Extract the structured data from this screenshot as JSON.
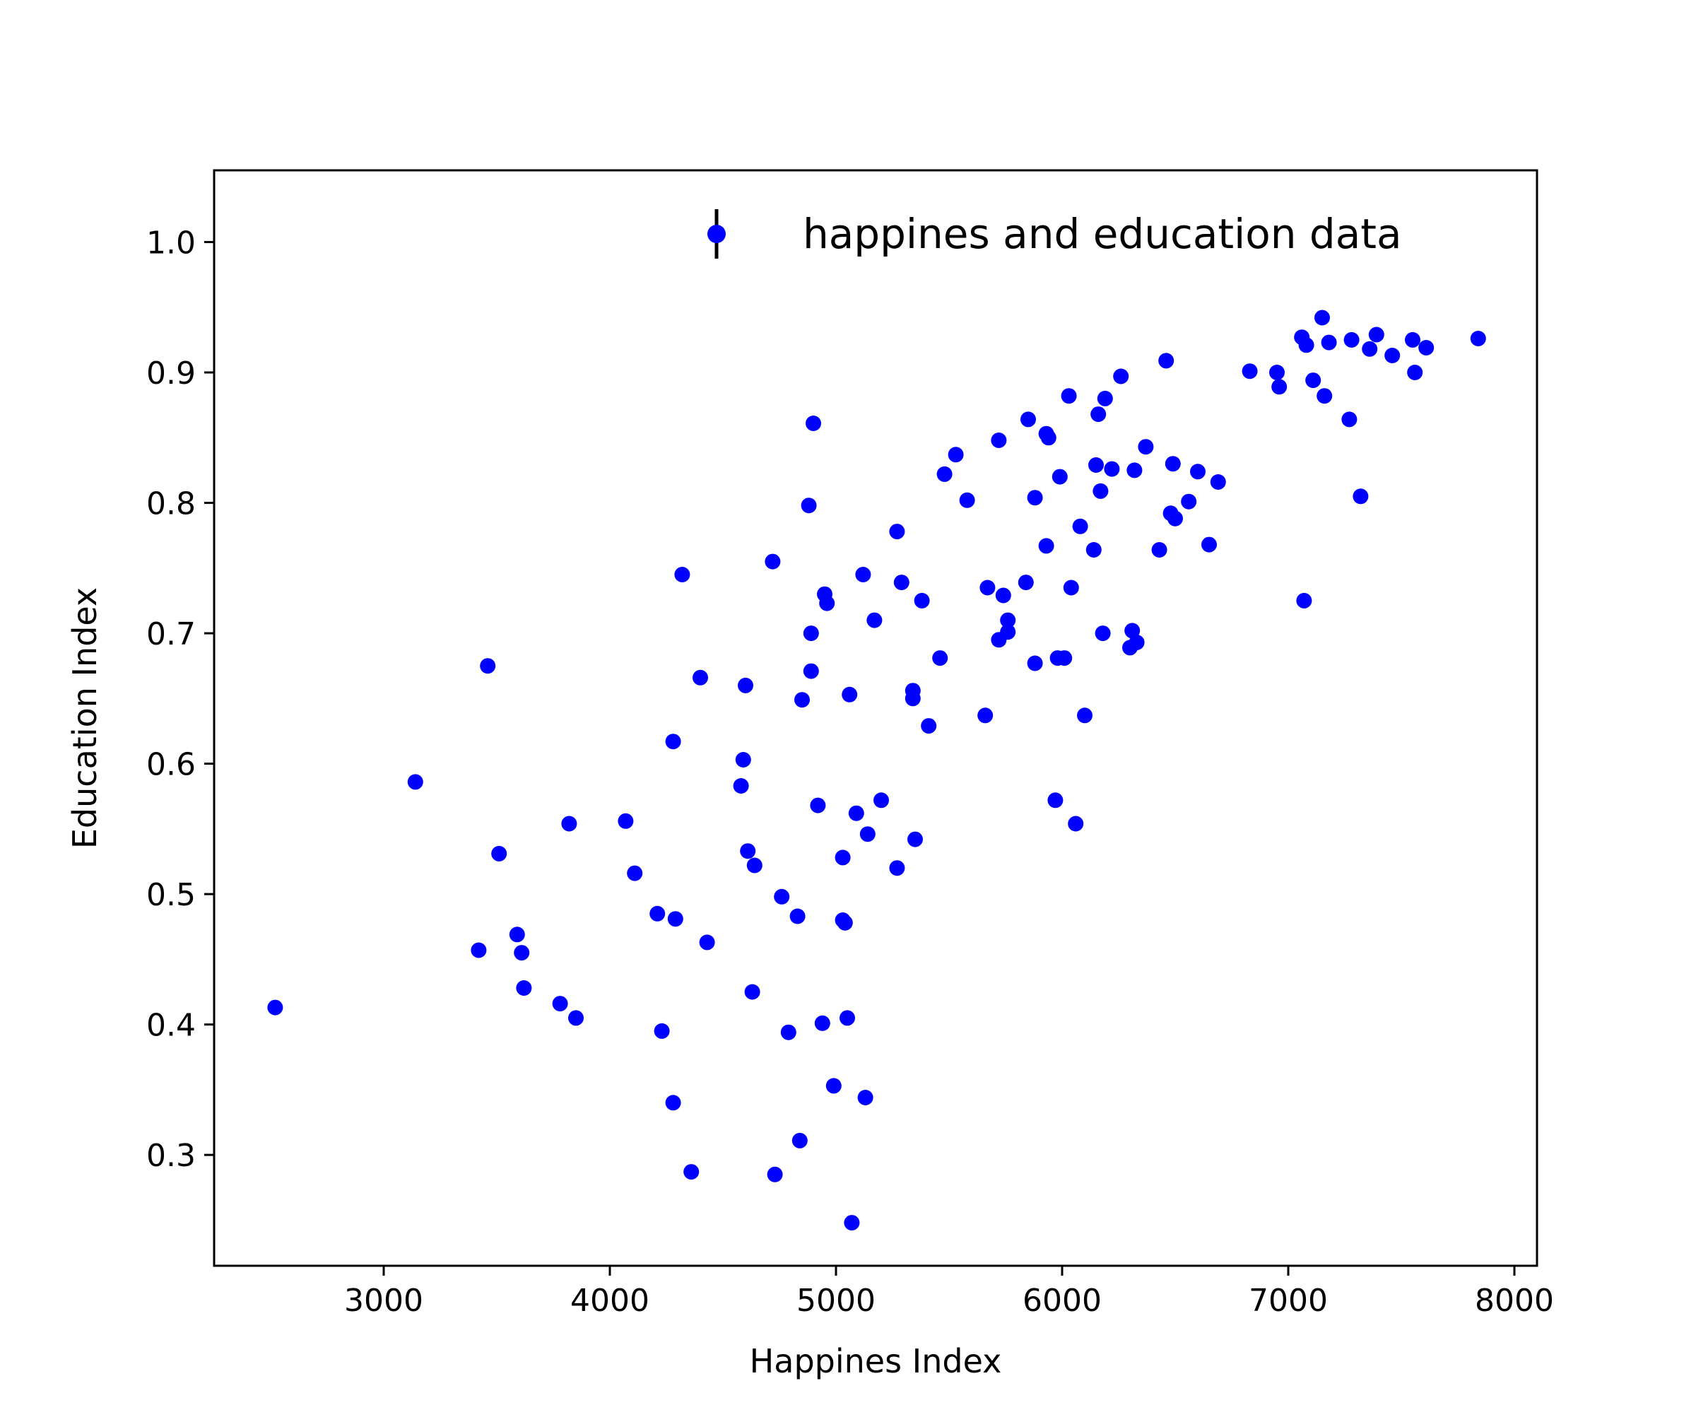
{
  "chart_data": {
    "type": "scatter",
    "title": "",
    "xlabel": "Happines Index",
    "ylabel": "Education Index",
    "xlim": [
      2250,
      8100
    ],
    "ylim": [
      0.215,
      1.055
    ],
    "xticks": [
      3000,
      4000,
      5000,
      6000,
      7000,
      8000
    ],
    "xtick_labels": [
      "3000",
      "4000",
      "5000",
      "6000",
      "7000",
      "8000"
    ],
    "yticks": [
      0.3,
      0.4,
      0.5,
      0.6,
      0.7,
      0.8,
      0.9,
      1.0
    ],
    "ytick_labels": [
      "0.3",
      "0.4",
      "0.5",
      "0.6",
      "0.7",
      "0.8",
      "0.9",
      "1.0"
    ],
    "grid": false,
    "legend_position": "top-right",
    "series": [
      {
        "name": "happines and education data",
        "color": "#0000ff",
        "marker": "circle",
        "errorbar_legend": true,
        "points": [
          [
            2520,
            0.413
          ],
          [
            3140,
            0.586
          ],
          [
            3420,
            0.457
          ],
          [
            3460,
            0.675
          ],
          [
            3510,
            0.531
          ],
          [
            3590,
            0.469
          ],
          [
            3610,
            0.455
          ],
          [
            3620,
            0.428
          ],
          [
            3780,
            0.416
          ],
          [
            3820,
            0.554
          ],
          [
            3850,
            0.405
          ],
          [
            4070,
            0.556
          ],
          [
            4110,
            0.516
          ],
          [
            4210,
            0.485
          ],
          [
            4230,
            0.395
          ],
          [
            4280,
            0.617
          ],
          [
            4280,
            0.34
          ],
          [
            4290,
            0.481
          ],
          [
            4320,
            0.745
          ],
          [
            4360,
            0.287
          ],
          [
            4400,
            0.666
          ],
          [
            4430,
            0.463
          ],
          [
            4580,
            0.583
          ],
          [
            4590,
            0.603
          ],
          [
            4600,
            0.66
          ],
          [
            4610,
            0.533
          ],
          [
            4630,
            0.425
          ],
          [
            4640,
            0.522
          ],
          [
            4720,
            0.755
          ],
          [
            4730,
            0.285
          ],
          [
            4760,
            0.498
          ],
          [
            4790,
            0.394
          ],
          [
            4830,
            0.483
          ],
          [
            4840,
            0.311
          ],
          [
            4850,
            0.649
          ],
          [
            4880,
            0.798
          ],
          [
            4890,
            0.671
          ],
          [
            4890,
            0.7
          ],
          [
            4900,
            0.861
          ],
          [
            4920,
            0.568
          ],
          [
            4940,
            0.401
          ],
          [
            4950,
            0.73
          ],
          [
            4960,
            0.723
          ],
          [
            4990,
            0.353
          ],
          [
            5030,
            0.528
          ],
          [
            5030,
            0.48
          ],
          [
            5040,
            0.478
          ],
          [
            5050,
            0.405
          ],
          [
            5060,
            0.653
          ],
          [
            5070,
            0.248
          ],
          [
            5090,
            0.562
          ],
          [
            5120,
            0.745
          ],
          [
            5130,
            0.344
          ],
          [
            5140,
            0.546
          ],
          [
            5170,
            0.71
          ],
          [
            5200,
            0.572
          ],
          [
            5270,
            0.778
          ],
          [
            5270,
            0.52
          ],
          [
            5290,
            0.739
          ],
          [
            5340,
            0.656
          ],
          [
            5340,
            0.65
          ],
          [
            5350,
            0.542
          ],
          [
            5380,
            0.725
          ],
          [
            5410,
            0.629
          ],
          [
            5460,
            0.681
          ],
          [
            5480,
            0.822
          ],
          [
            5530,
            0.837
          ],
          [
            5580,
            0.802
          ],
          [
            5660,
            0.637
          ],
          [
            5670,
            0.735
          ],
          [
            5720,
            0.848
          ],
          [
            5720,
            0.695
          ],
          [
            5740,
            0.729
          ],
          [
            5760,
            0.71
          ],
          [
            5760,
            0.701
          ],
          [
            5840,
            0.739
          ],
          [
            5850,
            0.864
          ],
          [
            5880,
            0.677
          ],
          [
            5880,
            0.804
          ],
          [
            5930,
            0.853
          ],
          [
            5930,
            0.767
          ],
          [
            5940,
            0.85
          ],
          [
            5970,
            0.572
          ],
          [
            5980,
            0.681
          ],
          [
            5990,
            0.82
          ],
          [
            6010,
            0.681
          ],
          [
            6030,
            0.882
          ],
          [
            6040,
            0.735
          ],
          [
            6060,
            0.554
          ],
          [
            6080,
            0.782
          ],
          [
            6100,
            0.637
          ],
          [
            6140,
            0.764
          ],
          [
            6150,
            0.829
          ],
          [
            6160,
            0.868
          ],
          [
            6170,
            0.809
          ],
          [
            6180,
            0.7
          ],
          [
            6190,
            0.88
          ],
          [
            6220,
            0.826
          ],
          [
            6260,
            0.897
          ],
          [
            6300,
            0.689
          ],
          [
            6310,
            0.702
          ],
          [
            6320,
            0.825
          ],
          [
            6330,
            0.693
          ],
          [
            6370,
            0.843
          ],
          [
            6430,
            0.764
          ],
          [
            6460,
            0.909
          ],
          [
            6480,
            0.792
          ],
          [
            6490,
            0.83
          ],
          [
            6500,
            0.788
          ],
          [
            6560,
            0.801
          ],
          [
            6600,
            0.824
          ],
          [
            6650,
            0.768
          ],
          [
            6690,
            0.816
          ],
          [
            6830,
            0.901
          ],
          [
            6950,
            0.9
          ],
          [
            6960,
            0.889
          ],
          [
            7060,
            0.927
          ],
          [
            7070,
            0.725
          ],
          [
            7080,
            0.921
          ],
          [
            7110,
            0.894
          ],
          [
            7150,
            0.942
          ],
          [
            7160,
            0.882
          ],
          [
            7180,
            0.923
          ],
          [
            7270,
            0.864
          ],
          [
            7280,
            0.925
          ],
          [
            7320,
            0.805
          ],
          [
            7360,
            0.918
          ],
          [
            7390,
            0.929
          ],
          [
            7460,
            0.913
          ],
          [
            7550,
            0.925
          ],
          [
            7560,
            0.9
          ],
          [
            7610,
            0.919
          ],
          [
            7840,
            0.926
          ]
        ]
      }
    ]
  }
}
